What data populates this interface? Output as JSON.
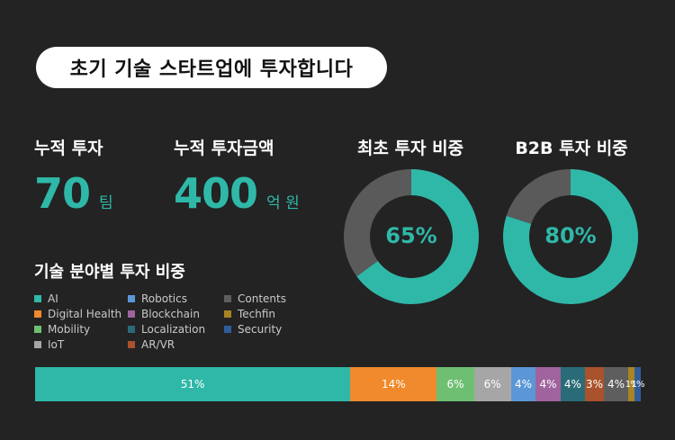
{
  "title": "초기 기술 스타트업에 투자합니다",
  "stats": [
    {
      "label": "누적 투자",
      "value": "70",
      "unit": "팀"
    },
    {
      "label": "누적 투자금액",
      "value": "400",
      "unit": "억 원"
    }
  ],
  "donuts": [
    {
      "title": "최초 투자 비중",
      "value": 65,
      "label": "65%"
    },
    {
      "title": "B2B 투자 비중",
      "value": 80,
      "label": "80%"
    }
  ],
  "colors": {
    "accent": "#2fb8a8",
    "donut_rest": "#5a5a5a",
    "background": "#232323"
  },
  "section_title": "기술 분야별 투자 비중",
  "chart_data": {
    "type": "bar",
    "orientation": "horizontal-stacked",
    "title": "기술 분야별 투자 비중",
    "categories": [
      "AI",
      "Digital Health",
      "Mobility",
      "IoT",
      "Robotics",
      "Blockchain",
      "Localization",
      "AR/VR",
      "Contents",
      "Techfin",
      "Security"
    ],
    "values": [
      51,
      14,
      6,
      6,
      4,
      4,
      4,
      3,
      4,
      1,
      1
    ],
    "labels": [
      "51%",
      "14%",
      "6%",
      "6%",
      "4%",
      "4%",
      "4%",
      "3%",
      "4%",
      "1%",
      "1%"
    ],
    "colors": [
      "#2fb8a8",
      "#f08a2c",
      "#6fbf73",
      "#a6a6a6",
      "#5b97d6",
      "#a0639e",
      "#2a6b78",
      "#a9522b",
      "#5e5e5e",
      "#a98423",
      "#2f5d9b"
    ],
    "legend": [
      {
        "name": "AI",
        "color": "#2fb8a8"
      },
      {
        "name": "Digital Health",
        "color": "#f08a2c"
      },
      {
        "name": "Mobility",
        "color": "#6fbf73"
      },
      {
        "name": "IoT",
        "color": "#a6a6a6"
      },
      {
        "name": "Robotics",
        "color": "#5b97d6"
      },
      {
        "name": "Blockchain",
        "color": "#a0639e"
      },
      {
        "name": "Localization",
        "color": "#2a6b78"
      },
      {
        "name": "AR/VR",
        "color": "#a9522b"
      },
      {
        "name": "Contents",
        "color": "#5e5e5e"
      },
      {
        "name": "Techfin",
        "color": "#a98423"
      },
      {
        "name": "Security",
        "color": "#2f5d9b"
      }
    ],
    "legend_placement": "above-bar"
  }
}
